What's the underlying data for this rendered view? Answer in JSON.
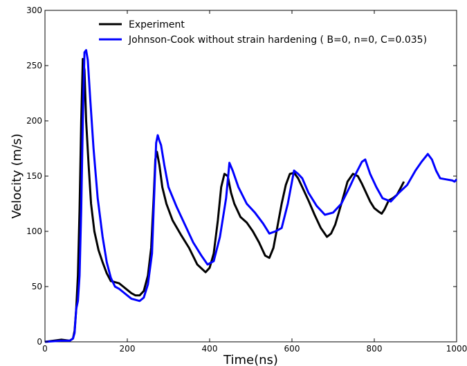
{
  "chart_data": {
    "type": "line",
    "title": "",
    "xlabel": "Time(ns)",
    "ylabel": "Velocity (m/s)",
    "xlim": [
      0,
      1000
    ],
    "ylim": [
      0,
      300
    ],
    "xticks": [
      0,
      200,
      400,
      600,
      800,
      1000
    ],
    "yticks": [
      0,
      50,
      100,
      150,
      200,
      250,
      300
    ],
    "grid": false,
    "legend_position": "top-center",
    "series": [
      {
        "name": "Experiment",
        "color": "#000000",
        "x": [
          0,
          40,
          60,
          68,
          72,
          76,
          80,
          84,
          88,
          92,
          96,
          100,
          106,
          112,
          120,
          130,
          140,
          150,
          160,
          170,
          180,
          190,
          200,
          210,
          220,
          230,
          240,
          250,
          258,
          264,
          268,
          272,
          278,
          285,
          295,
          310,
          330,
          350,
          370,
          390,
          400,
          410,
          420,
          428,
          436,
          444,
          452,
          460,
          475,
          490,
          505,
          520,
          535,
          545,
          555,
          565,
          575,
          585,
          595,
          605,
          615,
          625,
          640,
          655,
          670,
          685,
          695,
          705,
          720,
          735,
          748,
          760,
          770,
          780,
          790,
          800,
          810,
          818,
          825,
          835,
          845,
          855,
          865,
          872
        ],
        "y": [
          0,
          2,
          1,
          3,
          10,
          30,
          60,
          120,
          200,
          256,
          246,
          200,
          160,
          125,
          100,
          83,
          72,
          62,
          55,
          54,
          53,
          50,
          47,
          44,
          42,
          42,
          46,
          60,
          85,
          130,
          165,
          172,
          160,
          140,
          125,
          110,
          97,
          85,
          70,
          63,
          67,
          80,
          110,
          140,
          152,
          150,
          135,
          125,
          113,
          108,
          100,
          90,
          78,
          76,
          85,
          105,
          125,
          142,
          152,
          153,
          148,
          140,
          128,
          115,
          103,
          95,
          98,
          106,
          125,
          145,
          152,
          150,
          143,
          135,
          127,
          121,
          118,
          116,
          120,
          128,
          130,
          133,
          140,
          145
        ]
      },
      {
        "name": "Johnson-Cook without strain hardening ( B=0, n=0, C=0.035)",
        "color": "#0000ff",
        "x": [
          0,
          40,
          60,
          68,
          72,
          76,
          80,
          84,
          88,
          92,
          96,
          100,
          104,
          110,
          118,
          128,
          140,
          150,
          160,
          170,
          180,
          190,
          200,
          210,
          220,
          230,
          240,
          250,
          260,
          266,
          270,
          274,
          278,
          282,
          290,
          300,
          320,
          340,
          360,
          380,
          395,
          410,
          425,
          440,
          448,
          456,
          470,
          490,
          510,
          530,
          545,
          560,
          575,
          590,
          605,
          615,
          625,
          640,
          660,
          680,
          700,
          720,
          740,
          755,
          770,
          778,
          790,
          805,
          820,
          840,
          860,
          880,
          900,
          915,
          930,
          940,
          950,
          960,
          975,
          990,
          995,
          1000
        ],
        "y": [
          0,
          1,
          1,
          3,
          8,
          30,
          37,
          60,
          120,
          200,
          262,
          264,
          255,
          220,
          175,
          130,
          95,
          72,
          58,
          50,
          48,
          45,
          42,
          39,
          38,
          37,
          40,
          52,
          80,
          140,
          180,
          187,
          182,
          178,
          160,
          140,
          122,
          106,
          90,
          78,
          70,
          73,
          95,
          130,
          162,
          155,
          140,
          125,
          117,
          107,
          98,
          100,
          103,
          125,
          155,
          152,
          148,
          135,
          123,
          115,
          117,
          125,
          140,
          152,
          163,
          165,
          152,
          140,
          130,
          127,
          135,
          142,
          155,
          163,
          170,
          165,
          155,
          148,
          147,
          146,
          145,
          147
        ]
      }
    ]
  }
}
